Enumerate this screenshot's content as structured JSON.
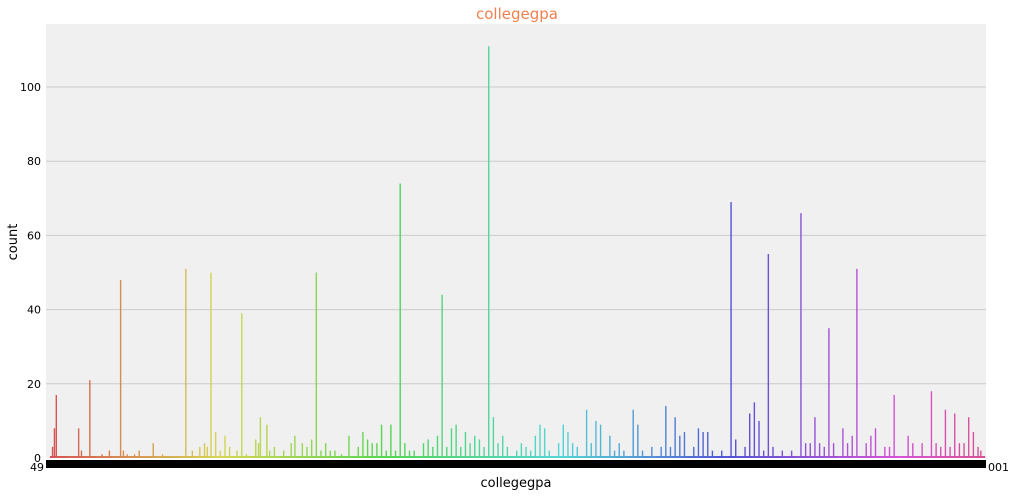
{
  "chart_data": {
    "type": "bar",
    "title": "collegegpa",
    "xlabel": "collegegpa",
    "ylabel": "count",
    "ylim": [
      0,
      117
    ],
    "yticks": [
      0,
      20,
      40,
      60,
      80,
      100
    ],
    "xtick_first": "49",
    "xtick_last": "001",
    "grid": true,
    "legend": "none",
    "background": "#f0f0f0",
    "grid_color": "#cbcbcb",
    "bars": [
      [
        0.002,
        3
      ],
      [
        0.004,
        8
      ],
      [
        0.006,
        17
      ],
      [
        0.03,
        8
      ],
      [
        0.033,
        2
      ],
      [
        0.042,
        21
      ],
      [
        0.055,
        1
      ],
      [
        0.063,
        2
      ],
      [
        0.075,
        48
      ],
      [
        0.078,
        2
      ],
      [
        0.082,
        1
      ],
      [
        0.09,
        1
      ],
      [
        0.095,
        2
      ],
      [
        0.11,
        4
      ],
      [
        0.12,
        1
      ],
      [
        0.145,
        51
      ],
      [
        0.152,
        2
      ],
      [
        0.16,
        3
      ],
      [
        0.165,
        4
      ],
      [
        0.168,
        3
      ],
      [
        0.172,
        50
      ],
      [
        0.177,
        7
      ],
      [
        0.182,
        2
      ],
      [
        0.187,
        6
      ],
      [
        0.192,
        3
      ],
      [
        0.2,
        2
      ],
      [
        0.205,
        39
      ],
      [
        0.21,
        1
      ],
      [
        0.22,
        5
      ],
      [
        0.223,
        4
      ],
      [
        0.225,
        11
      ],
      [
        0.232,
        9
      ],
      [
        0.235,
        2
      ],
      [
        0.24,
        3
      ],
      [
        0.25,
        2
      ],
      [
        0.258,
        4
      ],
      [
        0.262,
        6
      ],
      [
        0.27,
        4
      ],
      [
        0.275,
        3
      ],
      [
        0.28,
        5
      ],
      [
        0.285,
        50
      ],
      [
        0.29,
        2
      ],
      [
        0.295,
        4
      ],
      [
        0.3,
        2
      ],
      [
        0.305,
        2
      ],
      [
        0.312,
        1
      ],
      [
        0.32,
        6
      ],
      [
        0.33,
        3
      ],
      [
        0.335,
        7
      ],
      [
        0.34,
        5
      ],
      [
        0.345,
        4
      ],
      [
        0.35,
        4
      ],
      [
        0.355,
        9
      ],
      [
        0.36,
        2
      ],
      [
        0.365,
        9
      ],
      [
        0.37,
        2
      ],
      [
        0.375,
        74
      ],
      [
        0.38,
        4
      ],
      [
        0.385,
        2
      ],
      [
        0.39,
        2
      ],
      [
        0.4,
        4
      ],
      [
        0.405,
        5
      ],
      [
        0.41,
        3
      ],
      [
        0.415,
        6
      ],
      [
        0.42,
        44
      ],
      [
        0.425,
        3
      ],
      [
        0.43,
        8
      ],
      [
        0.435,
        9
      ],
      [
        0.44,
        3
      ],
      [
        0.445,
        7
      ],
      [
        0.45,
        4
      ],
      [
        0.455,
        6
      ],
      [
        0.46,
        5
      ],
      [
        0.465,
        3
      ],
      [
        0.47,
        111
      ],
      [
        0.475,
        11
      ],
      [
        0.48,
        4
      ],
      [
        0.485,
        6
      ],
      [
        0.49,
        3
      ],
      [
        0.5,
        2
      ],
      [
        0.505,
        4
      ],
      [
        0.51,
        3
      ],
      [
        0.515,
        2
      ],
      [
        0.52,
        6
      ],
      [
        0.525,
        9
      ],
      [
        0.53,
        8
      ],
      [
        0.535,
        2
      ],
      [
        0.545,
        4
      ],
      [
        0.55,
        9
      ],
      [
        0.555,
        7
      ],
      [
        0.56,
        4
      ],
      [
        0.565,
        3
      ],
      [
        0.575,
        13
      ],
      [
        0.58,
        4
      ],
      [
        0.585,
        10
      ],
      [
        0.59,
        9
      ],
      [
        0.6,
        6
      ],
      [
        0.605,
        2
      ],
      [
        0.61,
        4
      ],
      [
        0.615,
        2
      ],
      [
        0.625,
        13
      ],
      [
        0.63,
        9
      ],
      [
        0.635,
        2
      ],
      [
        0.645,
        3
      ],
      [
        0.655,
        3
      ],
      [
        0.66,
        14
      ],
      [
        0.665,
        3
      ],
      [
        0.67,
        11
      ],
      [
        0.675,
        6
      ],
      [
        0.68,
        7
      ],
      [
        0.69,
        3
      ],
      [
        0.695,
        8
      ],
      [
        0.7,
        7
      ],
      [
        0.705,
        7
      ],
      [
        0.71,
        2
      ],
      [
        0.72,
        2
      ],
      [
        0.73,
        69
      ],
      [
        0.735,
        5
      ],
      [
        0.745,
        3
      ],
      [
        0.75,
        12
      ],
      [
        0.755,
        15
      ],
      [
        0.76,
        10
      ],
      [
        0.765,
        2
      ],
      [
        0.77,
        55
      ],
      [
        0.775,
        3
      ],
      [
        0.785,
        2
      ],
      [
        0.795,
        2
      ],
      [
        0.805,
        66
      ],
      [
        0.81,
        4
      ],
      [
        0.815,
        4
      ],
      [
        0.82,
        11
      ],
      [
        0.825,
        4
      ],
      [
        0.83,
        3
      ],
      [
        0.835,
        35
      ],
      [
        0.84,
        4
      ],
      [
        0.85,
        8
      ],
      [
        0.855,
        4
      ],
      [
        0.86,
        6
      ],
      [
        0.865,
        51
      ],
      [
        0.875,
        4
      ],
      [
        0.88,
        6
      ],
      [
        0.885,
        8
      ],
      [
        0.895,
        3
      ],
      [
        0.9,
        3
      ],
      [
        0.905,
        17
      ],
      [
        0.92,
        6
      ],
      [
        0.925,
        4
      ],
      [
        0.935,
        4
      ],
      [
        0.945,
        18
      ],
      [
        0.95,
        4
      ],
      [
        0.955,
        3
      ],
      [
        0.96,
        13
      ],
      [
        0.965,
        3
      ],
      [
        0.97,
        12
      ],
      [
        0.975,
        4
      ],
      [
        0.98,
        4
      ],
      [
        0.985,
        11
      ],
      [
        0.99,
        7
      ],
      [
        0.995,
        3
      ],
      [
        0.998,
        2
      ]
    ]
  }
}
